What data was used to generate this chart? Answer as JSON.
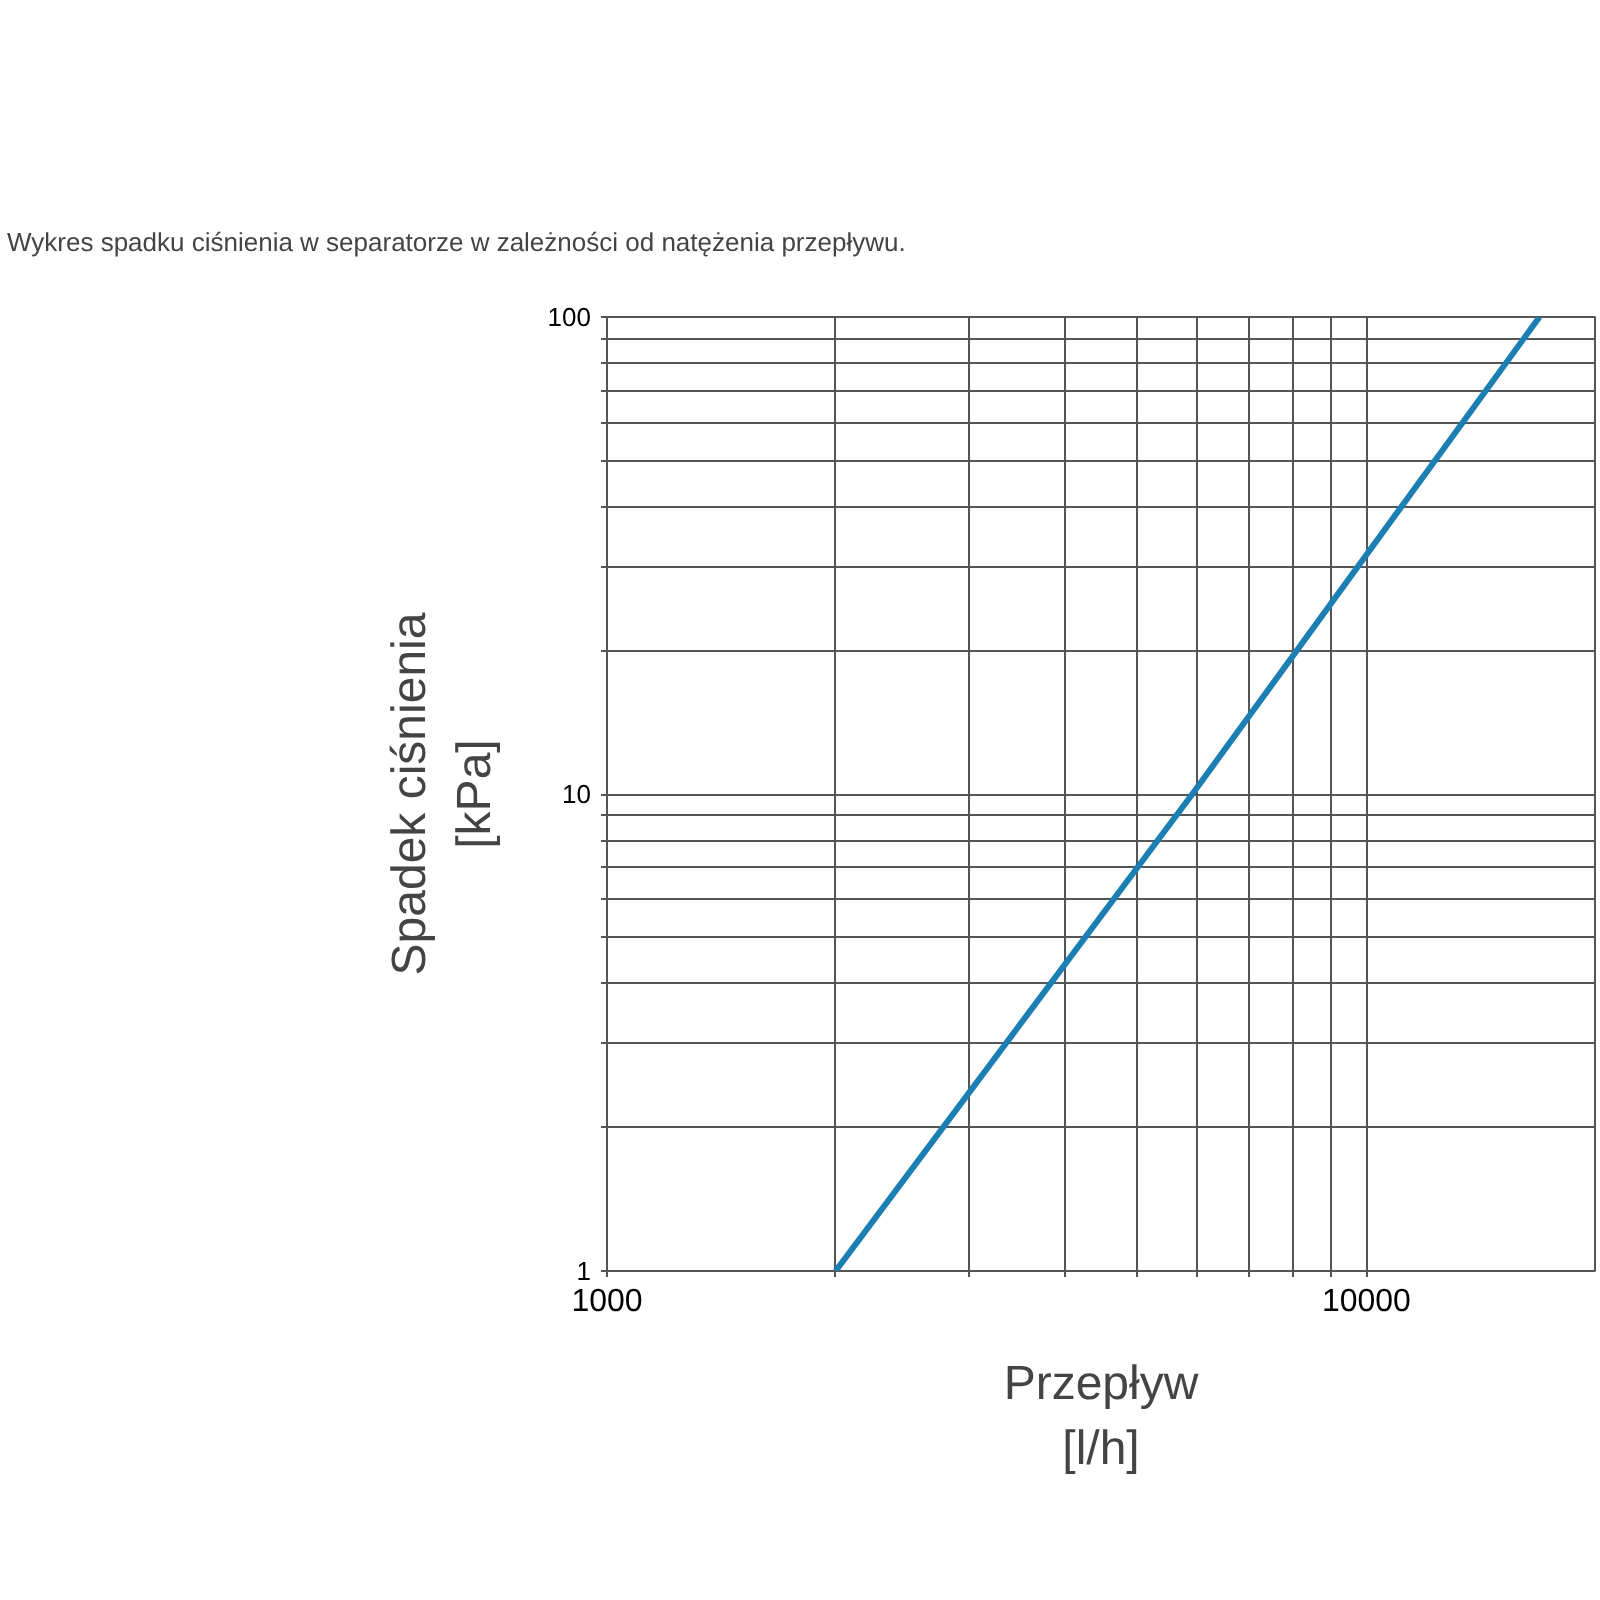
{
  "chart_data": {
    "type": "line",
    "title": "Wykres spadku ciśnienia w separatorze w zależności od natężenia przepływu.",
    "xlabel": "Przepływ\n[l/h]",
    "ylabel": "Spadek ciśnienia\n[kPa]",
    "log": "xy",
    "grid": true,
    "marker": "none",
    "line_style": "solid",
    "x": [
      2000,
      5900,
      16900
    ],
    "series": [
      {
        "color": "#1b7fb3",
        "values": [
          1,
          10,
          100
        ]
      }
    ],
    "xlim": [
      1000,
      20000
    ],
    "ylim": [
      1,
      100
    ],
    "xticks": [
      1000,
      {
        "value": 2000,
        "label": null
      },
      {
        "value": 3000,
        "label": null
      },
      {
        "value": 4000,
        "label": null
      },
      {
        "value": 5000,
        "label": null
      },
      {
        "value": 6000,
        "label": null
      },
      {
        "value": 7000,
        "label": null
      },
      {
        "value": 8000,
        "label": null
      },
      {
        "value": 9000,
        "label": null
      },
      10000
    ],
    "yticks": [
      1,
      {
        "value": 2,
        "label": null
      },
      {
        "value": 3,
        "label": null
      },
      {
        "value": 4,
        "label": null
      },
      {
        "value": 5,
        "label": null
      },
      {
        "value": 6,
        "label": null
      },
      {
        "value": 7,
        "label": null
      },
      {
        "value": 8,
        "label": null
      },
      {
        "value": 9,
        "label": null
      },
      10,
      {
        "value": 20,
        "label": null
      },
      {
        "value": 30,
        "label": null
      },
      {
        "value": 40,
        "label": null
      },
      {
        "value": 50,
        "label": null
      },
      {
        "value": 60,
        "label": null
      },
      {
        "value": 70,
        "label": null
      },
      {
        "value": 80,
        "label": null
      },
      {
        "value": 90,
        "label": null
      },
      100
    ]
  }
}
